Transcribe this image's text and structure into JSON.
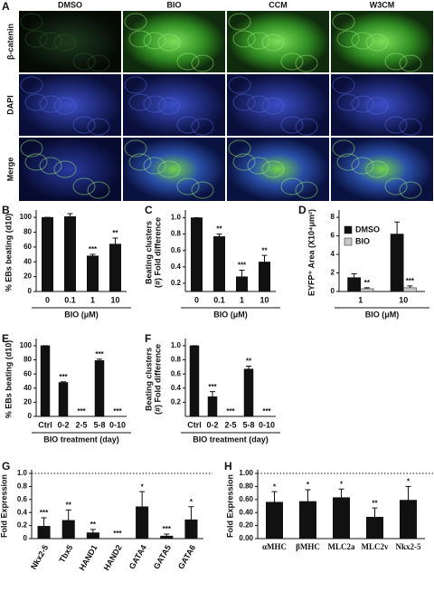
{
  "panel_a": {
    "letter": "A",
    "columns": [
      "DMSO",
      "BIO",
      "CCM",
      "W3CM"
    ],
    "rows": [
      "β-catenin",
      "DAPI",
      "Merge"
    ]
  },
  "chart_data": [
    {
      "type": "bar",
      "panel": "B",
      "ylabel_lines": [
        "% EBs beating (d10)"
      ],
      "xlabel": "BIO (μM)",
      "categories": [
        "0",
        "0.1",
        "1",
        "10"
      ],
      "values": [
        100,
        101,
        48,
        64
      ],
      "errors": [
        0,
        4,
        2,
        8
      ],
      "significance": [
        null,
        null,
        "***",
        "**"
      ],
      "color": "#111111",
      "ylim": [
        0,
        105
      ],
      "yticks": [
        0,
        20,
        40,
        60,
        80,
        100
      ]
    },
    {
      "type": "bar",
      "panel": "C",
      "ylabel_lines": [
        "Beating clusters",
        "(#) Fold difference"
      ],
      "xlabel": "BIO (μM)",
      "categories": [
        "0",
        "0.1",
        "1",
        "10"
      ],
      "values": [
        1.0,
        0.77,
        0.28,
        0.46
      ],
      "errors": [
        0,
        0.03,
        0.08,
        0.08
      ],
      "significance": [
        null,
        "**",
        "***",
        "**"
      ],
      "color": "#111111",
      "ylim": [
        0.1,
        1.05
      ],
      "yticks": [
        0.2,
        0.4,
        0.6,
        0.8,
        {
          "value": 1.0,
          "label": "1.0"
        }
      ]
    },
    {
      "type": "bar",
      "panel": "D",
      "ylabel_lines": [
        "EYFP⁺ Area (X10⁴μm²)"
      ],
      "xlabel": "BIO (μM)",
      "categories": [
        "1",
        "10"
      ],
      "series": [
        {
          "name": "DMSO",
          "color": "#111111",
          "values": [
            1.5,
            6.2
          ],
          "errors": [
            0.4,
            1.3
          ],
          "significance": [
            null,
            null
          ]
        },
        {
          "name": "BIO",
          "color": "#c8c8c8",
          "values": [
            0.3,
            0.4
          ],
          "errors": [
            0.1,
            0.2
          ],
          "significance": [
            "**",
            "***"
          ]
        }
      ],
      "ylim": [
        0,
        8.4
      ],
      "yticks": [
        0,
        2,
        4,
        6,
        8
      ]
    },
    {
      "type": "bar",
      "panel": "E",
      "ylabel_lines": [
        "% EBs beating (d10)"
      ],
      "xlabel": "BIO treatment (day)",
      "categories": [
        "Ctrl",
        "0-2",
        "2-5",
        "5-8",
        "0-10"
      ],
      "values": [
        100,
        48,
        0,
        79,
        0
      ],
      "errors": [
        0,
        1,
        0,
        2,
        0
      ],
      "significance": [
        null,
        "***",
        "***",
        "***",
        "***"
      ],
      "color": "#111111",
      "ylim": [
        0,
        105
      ],
      "yticks": [
        0,
        20,
        40,
        60,
        80,
        100
      ]
    },
    {
      "type": "bar",
      "panel": "F",
      "ylabel_lines": [
        "Beating clusters",
        "(#) Fold difference"
      ],
      "xlabel": "BIO treatment (day)",
      "categories": [
        "Ctrl",
        "0-2",
        "2-5",
        "5-8",
        "0-10"
      ],
      "values": [
        1.0,
        0.28,
        0,
        0.67,
        0
      ],
      "errors": [
        0,
        0.07,
        0,
        0.04,
        0
      ],
      "significance": [
        null,
        "***",
        "***",
        "**",
        "***"
      ],
      "color": "#111111",
      "ylim": [
        0,
        1.05
      ],
      "yticks": [
        0.2,
        0.4,
        0.6,
        0.8,
        {
          "value": 1.0,
          "label": "1.0"
        }
      ]
    },
    {
      "type": "bar",
      "panel": "G",
      "ylabel_lines": [
        "Fold Expression"
      ],
      "categories": [
        "Nkx2-5",
        "Tbx5",
        "HAND1",
        "HAND2",
        "GATA4",
        "GATA5",
        "GATA6"
      ],
      "values": [
        0.19,
        0.28,
        0.09,
        0,
        0.49,
        0.04,
        0.29
      ],
      "errors": [
        0.13,
        0.16,
        0.05,
        0,
        0.23,
        0.03,
        0.2
      ],
      "significance": [
        "***",
        "**",
        "**",
        "***",
        "*",
        "***",
        "*"
      ],
      "color": "#111111",
      "ylim": [
        0,
        1.0
      ],
      "yticks": [
        0,
        0.2,
        0.4,
        0.6,
        0.8,
        {
          "value": 1.0,
          "label": "1.0"
        }
      ],
      "reference_line": 1.0
    },
    {
      "type": "bar",
      "panel": "H",
      "ylabel_lines": [
        "Fold Expression"
      ],
      "categories": [
        "αMHC",
        "βMHC",
        "MLC2a",
        "MLC2v",
        "Nkx2-5"
      ],
      "values": [
        0.56,
        0.57,
        0.63,
        0.33,
        0.59
      ],
      "errors": [
        0.16,
        0.18,
        0.13,
        0.14,
        0.21
      ],
      "significance": [
        "*",
        "*",
        "*",
        "**",
        "*"
      ],
      "color": "#111111",
      "ylim": [
        0,
        1.0
      ],
      "yticks": [
        {
          "value": 0,
          "label": "0.00"
        },
        {
          "value": 0.2,
          "label": "0.20"
        },
        {
          "value": 0.4,
          "label": "0.40"
        },
        {
          "value": 0.6,
          "label": "0.60"
        },
        {
          "value": 0.8,
          "label": "0.80"
        },
        {
          "value": 1.0,
          "label": "1.00"
        }
      ],
      "reference_line": 1.0
    }
  ]
}
